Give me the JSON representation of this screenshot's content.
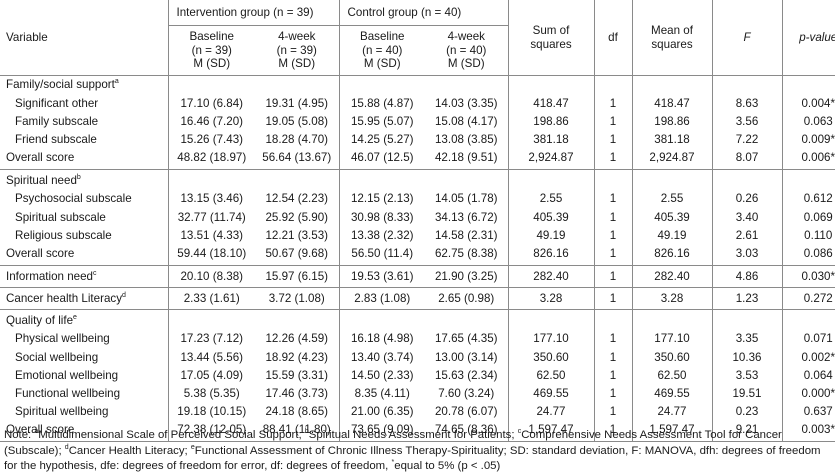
{
  "header": {
    "variable": "Variable",
    "intervention_group": "Intervention group (n = 39)",
    "control_group": "Control group (n = 40)",
    "sum_of_squares": "Sum of squares",
    "df": "df",
    "mean_of_squares": "Mean of squares",
    "f": "F",
    "p_value": "p-value",
    "int_baseline": [
      "Baseline",
      "(n = 39)",
      "M (SD)"
    ],
    "int_4week": [
      "4-week",
      "(n = 39)",
      "M (SD)"
    ],
    "ctl_baseline": [
      "Baseline",
      "(n = 40)",
      "M (SD)"
    ],
    "ctl_4week": [
      "4-week",
      "(n = 40)",
      "M (SD)"
    ]
  },
  "sections": [
    {
      "title": "Family/social support",
      "sup": "a",
      "rows": [
        {
          "label": "Significant other",
          "ib": "17.10 (6.84)",
          "i4": "19.31 (4.95)",
          "cb": "15.88 (4.87)",
          "c4": "14.03 (3.35)",
          "ss": "418.47",
          "df": "1",
          "ms": "418.47",
          "f": "8.63",
          "p": "0.004*"
        },
        {
          "label": "Family subscale",
          "ib": "16.46 (7.20)",
          "i4": "19.05 (5.08)",
          "cb": "15.95 (5.07)",
          "c4": "15.08 (4.17)",
          "ss": "198.86",
          "df": "1",
          "ms": "198.86",
          "f": "3.56",
          "p": "0.063"
        },
        {
          "label": "Friend subscale",
          "ib": "15.26 (7.43)",
          "i4": "18.28 (4.70)",
          "cb": "14.25 (5.27)",
          "c4": "13.08 (3.85)",
          "ss": "381.18",
          "df": "1",
          "ms": "381.18",
          "f": "7.22",
          "p": "0.009*"
        },
        {
          "label": "Overall score",
          "overall": true,
          "ib": "48.82 (18.97)",
          "i4": "56.64 (13.67)",
          "cb": "46.07 (12.5)",
          "c4": "42.18 (9.51)",
          "ss": "2,924.87",
          "df": "1",
          "ms": "2,924.87",
          "f": "8.07",
          "p": "0.006*"
        }
      ]
    },
    {
      "title": "Spiritual need",
      "sup": "b",
      "rows": [
        {
          "label": "Psychosocial subscale",
          "ib": "13.15 (3.46)",
          "i4": "12.54 (2.23)",
          "cb": "12.15 (2.13)",
          "c4": "14.05 (1.78)",
          "ss": "2.55",
          "df": "1",
          "ms": "2.55",
          "f": "0.26",
          "p": "0.612"
        },
        {
          "label": "Spiritual subscale",
          "ib": "32.77 (11.74)",
          "i4": "25.92 (5.90)",
          "cb": "30.98 (8.33)",
          "c4": "34.13 (6.72)",
          "ss": "405.39",
          "df": "1",
          "ms": "405.39",
          "f": "3.40",
          "p": "0.069"
        },
        {
          "label": "Religious subscale",
          "ib": "13.51 (4.33)",
          "i4": "12.21 (3.53)",
          "cb": "13.38 (2.32)",
          "c4": "14.58 (2.31)",
          "ss": "49.19",
          "df": "1",
          "ms": "49.19",
          "f": "2.61",
          "p": "0.110"
        },
        {
          "label": "Overall score",
          "overall": true,
          "ib": "59.44 (18.10)",
          "i4": "50.67 (9.68)",
          "cb": "56.50 (11.4)",
          "c4": "62.75 (8.38)",
          "ss": "826.16",
          "df": "1",
          "ms": "826.16",
          "f": "3.03",
          "p": "0.086"
        }
      ]
    }
  ],
  "single_rows": [
    {
      "label": "Information need",
      "sup": "c",
      "ib": "20.10 (8.38)",
      "i4": "15.97 (6.15)",
      "cb": "19.53 (3.61)",
      "c4": "21.90 (3.25)",
      "ss": "282.40",
      "df": "1",
      "ms": "282.40",
      "f": "4.86",
      "p": "0.030*"
    },
    {
      "label": "Cancer health Literacy",
      "sup": "d",
      "ib": "2.33 (1.61)",
      "i4": "3.72 (1.08)",
      "cb": "2.83 (1.08)",
      "c4": "2.65 (0.98)",
      "ss": "3.28",
      "df": "1",
      "ms": "3.28",
      "f": "1.23",
      "p": "0.272"
    }
  ],
  "quality_of_life": {
    "title": "Quality of life",
    "sup": "e",
    "rows": [
      {
        "label": "Physical wellbeing",
        "ib": "17.23 (7.12)",
        "i4": "12.26 (4.59)",
        "cb": "16.18 (4.98)",
        "c4": "17.65 (4.35)",
        "ss": "177.10",
        "df": "1",
        "ms": "177.10",
        "f": "3.35",
        "p": "0.071"
      },
      {
        "label": "Social wellbeing",
        "ib": "13.44 (5.56)",
        "i4": "18.92 (4.23)",
        "cb": "13.40 (3.74)",
        "c4": "13.00 (3.14)",
        "ss": "350.60",
        "df": "1",
        "ms": "350.60",
        "f": "10.36",
        "p": "0.002*"
      },
      {
        "label": "Emotional wellbeing",
        "ib": "17.05 (4.09)",
        "i4": "15.59 (3.31)",
        "cb": "14.50 (2.33)",
        "c4": "15.63 (2.34)",
        "ss": "62.50",
        "df": "1",
        "ms": "62.50",
        "f": "3.53",
        "p": "0.064"
      },
      {
        "label": "Functional wellbeing",
        "ib": "5.38 (5.35)",
        "i4": "17.46 (3.73)",
        "cb": "8.35 (4.11)",
        "c4": "7.60 (3.24)",
        "ss": "469.55",
        "df": "1",
        "ms": "469.55",
        "f": "19.51",
        "p": "0.000*"
      },
      {
        "label": "Spiritual wellbeing",
        "ib": "19.18 (10.15)",
        "i4": "24.18 (8.65)",
        "cb": "21.00 (6.35)",
        "c4": "20.78 (6.07)",
        "ss": "24.77",
        "df": "1",
        "ms": "24.77",
        "f": "0.23",
        "p": "0.637"
      },
      {
        "label": "Overall score",
        "overall": true,
        "ib": "72.38 (12.05)",
        "i4": "88.41 (11.80)",
        "cb": "73.65 (9.09)",
        "c4": "74.65 (8.36)",
        "ss": "1,597.47",
        "df": "1",
        "ms": "1,597.47",
        "f": "9.21",
        "p": "0.003*"
      }
    ]
  },
  "note": {
    "prefix": "Note: ",
    "items": [
      {
        "sup": "a",
        "text": "Multidimensional Scale of Perceived Social Support; "
      },
      {
        "sup": "b",
        "text": "Spiritual Needs Assessment for Patients; "
      },
      {
        "sup": "c",
        "text": "Comprehensive Needs Assessment Tool for Cancer (Subscale); "
      },
      {
        "sup": "d",
        "text": "Cancer Health Literacy; "
      },
      {
        "sup": "e",
        "text": "Functional Assessment of Chronic Illness Therapy-Spirituality; SD: standard deviation, F: MANOVA, dfh: degrees of freedom for the hypothesis, dfe: degrees of freedom for error, df: degrees of freedom, "
      },
      {
        "sup": "*",
        "text": "equal to 5% (p < .05)"
      }
    ]
  }
}
